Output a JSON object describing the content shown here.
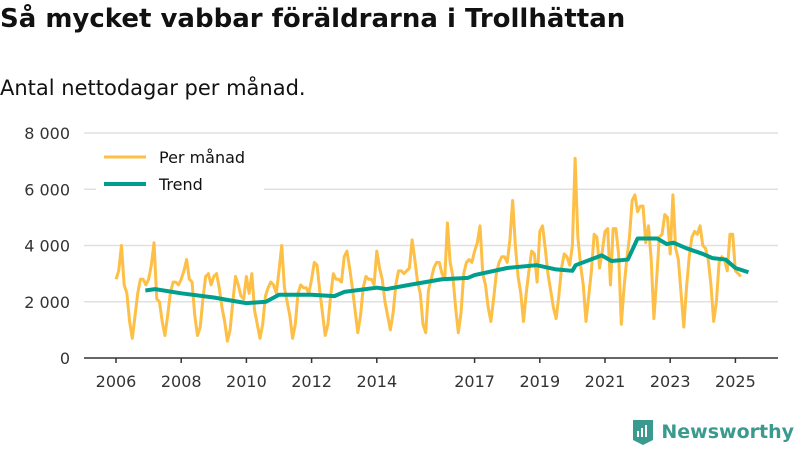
{
  "chart_data": {
    "type": "line",
    "title": "Så mycket vabbar föräldrarna i Trollhättan",
    "subtitle": "Antal nettodagar per månad.",
    "xlabel": "",
    "ylabel": "",
    "ylim": [
      0,
      8000
    ],
    "yticks": [
      {
        "v": 0,
        "label": "0"
      },
      {
        "v": 2000,
        "label": "2 000"
      },
      {
        "v": 4000,
        "label": "4 000"
      },
      {
        "v": 6000,
        "label": "6 000"
      },
      {
        "v": 8000,
        "label": "8 000"
      }
    ],
    "xticks": [
      2006,
      2008,
      2010,
      2012,
      2014,
      2017,
      2019,
      2021,
      2023,
      2025
    ],
    "xlim": [
      2005.4,
      2026.3
    ],
    "grid": true,
    "legend_position": "top-left",
    "series": [
      {
        "name": "Per månad",
        "color": "#fdbf46",
        "start_year": 2006,
        "monthly": [
          2800,
          3100,
          4000,
          2600,
          2300,
          1300,
          700,
          1500,
          2300,
          2800,
          2800,
          2600,
          2800,
          3300,
          4100,
          2100,
          2000,
          1300,
          800,
          1500,
          2300,
          2700,
          2700,
          2600,
          2800,
          3100,
          3500,
          2800,
          2700,
          1500,
          800,
          1100,
          2100,
          2900,
          3000,
          2600,
          2900,
          3000,
          2500,
          1800,
          1300,
          600,
          1000,
          2000,
          2900,
          2600,
          2200,
          2100,
          2900,
          2300,
          3000,
          1700,
          1200,
          700,
          1200,
          2200,
          2500,
          2700,
          2600,
          2300,
          3100,
          4000,
          2500,
          2000,
          1500,
          700,
          1200,
          2300,
          2600,
          2500,
          2500,
          2300,
          2800,
          3400,
          3300,
          2400,
          1600,
          800,
          1200,
          2200,
          3000,
          2800,
          2800,
          2700,
          3600,
          3800,
          3200,
          2500,
          1700,
          900,
          1500,
          2500,
          2900,
          2800,
          2800,
          2600,
          3800,
          3200,
          2800,
          2000,
          1500,
          1000,
          1600,
          2600,
          3100,
          3100,
          3000,
          3100,
          3200,
          4200,
          3500,
          2700,
          2300,
          1200,
          900,
          2400,
          2800,
          3200,
          3400,
          3400,
          3000,
          2800,
          4800,
          3400,
          2900,
          1800,
          900,
          1600,
          3000,
          3400,
          3500,
          3400,
          3800,
          4100,
          4700,
          3000,
          2600,
          1800,
          1300,
          2100,
          3000,
          3400,
          3600,
          3600,
          3400,
          4200,
          5600,
          4000,
          2900,
          2300,
          1300,
          2300,
          3100,
          3800,
          3700,
          2700,
          4500,
          4700,
          3900,
          3000,
          2400,
          1800,
          1400,
          2200,
          3200,
          3700,
          3600,
          3300,
          4000,
          7100,
          4300,
          3300,
          2600,
          1300,
          2200,
          3100,
          4400,
          4300,
          3200,
          3800,
          4500,
          4600,
          2600,
          4600,
          4600,
          3700,
          1200,
          2500,
          3500,
          4300,
          5600,
          5800,
          5200,
          5400,
          5400,
          4100,
          4700,
          3500,
          1400,
          2800,
          4300,
          4400,
          5100,
          5000,
          3700,
          5800,
          3900,
          3500,
          2300,
          1100,
          2500,
          3600,
          4300,
          4500,
          4400,
          4700,
          4000,
          3900,
          3500,
          2600,
          1300,
          2000,
          3400,
          3600,
          3500,
          3100,
          4400,
          4400,
          3100,
          3000,
          2900
        ]
      },
      {
        "name": "Trend",
        "color": "#009e8c",
        "points": [
          [
            2006.9,
            2400
          ],
          [
            2007.2,
            2450
          ],
          [
            2008,
            2300
          ],
          [
            2009,
            2150
          ],
          [
            2009.5,
            2050
          ],
          [
            2010,
            1950
          ],
          [
            2010.6,
            2000
          ],
          [
            2011,
            2250
          ],
          [
            2012,
            2250
          ],
          [
            2012.7,
            2200
          ],
          [
            2013,
            2350
          ],
          [
            2014,
            2500
          ],
          [
            2014.3,
            2450
          ],
          [
            2015,
            2600
          ],
          [
            2016,
            2800
          ],
          [
            2016.8,
            2850
          ],
          [
            2017,
            2950
          ],
          [
            2018,
            3200
          ],
          [
            2018.9,
            3300
          ],
          [
            2019.5,
            3150
          ],
          [
            2020,
            3100
          ],
          [
            2020.1,
            3300
          ],
          [
            2020.9,
            3650
          ],
          [
            2021.2,
            3450
          ],
          [
            2021.7,
            3500
          ],
          [
            2022,
            4250
          ],
          [
            2022.6,
            4250
          ],
          [
            2022.9,
            4050
          ],
          [
            2023.1,
            4100
          ],
          [
            2023.5,
            3900
          ],
          [
            2024,
            3700
          ],
          [
            2024.3,
            3550
          ],
          [
            2024.7,
            3500
          ],
          [
            2025,
            3200
          ],
          [
            2025.4,
            3050
          ]
        ]
      }
    ]
  },
  "brand": {
    "name": "Newsworthy",
    "color": "#3a9a8e"
  }
}
